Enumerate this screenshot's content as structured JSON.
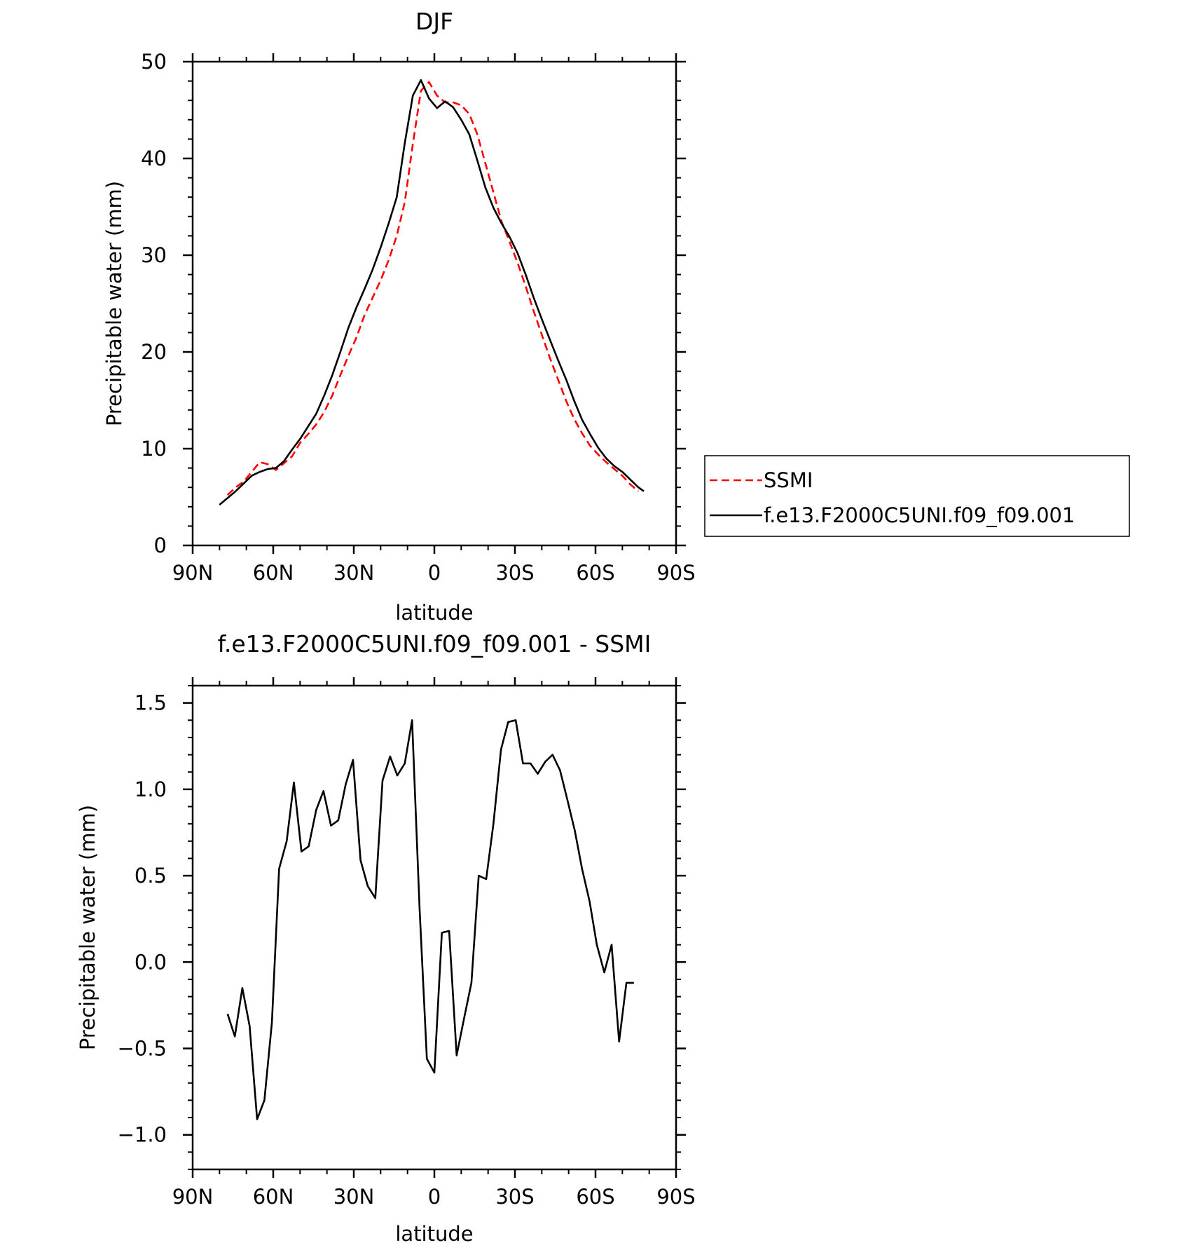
{
  "chart_data": [
    {
      "type": "line",
      "title": "DJF",
      "xlabel": "latitude",
      "ylabel": "Precipitable water (mm)",
      "x_reversed": true,
      "xlim": [
        90,
        -90
      ],
      "ylim": [
        0,
        50
      ],
      "xticks": [
        90,
        60,
        30,
        0,
        -30,
        -60,
        -90
      ],
      "xtick_labels": [
        "90N",
        "60N",
        "30N",
        "0",
        "30S",
        "60S",
        "90S"
      ],
      "yticks": [
        0,
        10,
        20,
        30,
        40,
        50
      ],
      "ytick_labels": [
        "0",
        "10",
        "20",
        "30",
        "40",
        "50"
      ],
      "legend": {
        "placement": "right",
        "entries": [
          {
            "label": "SSMI",
            "style": "dashed",
            "color": "#ff0000"
          },
          {
            "label": "f.e13.F2000C5UNI.f09_f09.001",
            "style": "solid",
            "color": "#000000"
          }
        ]
      },
      "series": [
        {
          "name": "SSMI",
          "color": "#ff0000",
          "style": "dashed",
          "x": [
            77,
            74,
            71,
            68,
            65,
            62,
            59,
            56,
            53,
            50,
            47,
            44,
            41,
            38,
            35,
            32,
            29,
            26,
            23,
            20,
            17,
            14,
            11,
            8,
            5,
            2,
            -1,
            -4,
            -7,
            -10,
            -13,
            -16,
            -19,
            -22,
            -25,
            -28,
            -31,
            -34,
            -37,
            -40,
            -43,
            -46,
            -49,
            -52,
            -55,
            -58,
            -61,
            -64,
            -67,
            -70,
            -73,
            -76
          ],
          "y": [
            5.2,
            6.0,
            6.6,
            7.6,
            8.6,
            8.4,
            7.8,
            8.5,
            9.2,
            10.6,
            11.5,
            12.5,
            13.8,
            15.5,
            17.6,
            19.6,
            21.5,
            23.8,
            25.6,
            27.4,
            29.5,
            32.0,
            35.5,
            41.5,
            47.0,
            47.9,
            46.5,
            45.8,
            45.8,
            45.5,
            44.6,
            42.5,
            39.5,
            36.5,
            33.5,
            31.4,
            29.2,
            26.8,
            24.2,
            21.8,
            19.4,
            17.2,
            15.0,
            13.1,
            11.6,
            10.3,
            9.4,
            8.6,
            7.9,
            7.2,
            6.3,
            5.6
          ]
        },
        {
          "name": "f.e13.F2000C5UNI.f09_f09.001",
          "color": "#000000",
          "style": "solid",
          "x": [
            80,
            77,
            74,
            71,
            68,
            65,
            62,
            59,
            56,
            53,
            50,
            47,
            44,
            41,
            38,
            35,
            32,
            29,
            26,
            23,
            20,
            17,
            14,
            11,
            8,
            5,
            2,
            -1,
            -4,
            -7,
            -10,
            -13,
            -16,
            -19,
            -22,
            -25,
            -28,
            -31,
            -34,
            -37,
            -40,
            -43,
            -46,
            -49,
            -52,
            -55,
            -58,
            -61,
            -64,
            -67,
            -70,
            -73,
            -76,
            -78
          ],
          "y": [
            4.2,
            4.9,
            5.6,
            6.4,
            7.2,
            7.6,
            7.9,
            8.0,
            8.7,
            9.9,
            11.0,
            12.3,
            13.6,
            15.5,
            17.6,
            20.0,
            22.5,
            24.6,
            26.5,
            28.5,
            30.8,
            33.3,
            36.0,
            41.6,
            46.5,
            48.1,
            46.2,
            45.2,
            45.9,
            45.3,
            44.0,
            42.5,
            39.8,
            37.0,
            34.9,
            33.3,
            31.9,
            30.2,
            28.0,
            25.6,
            23.4,
            21.3,
            19.2,
            17.2,
            15.0,
            13.0,
            11.5,
            10.1,
            9.0,
            8.2,
            7.6,
            6.8,
            6.0,
            5.6
          ]
        }
      ]
    },
    {
      "type": "line",
      "title": "f.e13.F2000C5UNI.f09_f09.001 - SSMI",
      "xlabel": "latitude",
      "ylabel": "Precipitable water (mm)",
      "x_reversed": true,
      "xlim": [
        90,
        -90
      ],
      "ylim": [
        -1.2,
        1.6
      ],
      "xticks": [
        90,
        60,
        30,
        0,
        -30,
        -60,
        -90
      ],
      "xtick_labels": [
        "90N",
        "60N",
        "30N",
        "0",
        "30S",
        "60S",
        "90S"
      ],
      "yticks": [
        -1.0,
        -0.5,
        0.0,
        0.5,
        1.0,
        1.5
      ],
      "ytick_labels": [
        "−1.0",
        "−0.5",
        "0.0",
        "0.5",
        "1.0",
        "1.5"
      ],
      "series": [
        {
          "color": "#000000",
          "style": "solid",
          "x": [
            77,
            74.3,
            71.5,
            68.8,
            66,
            63.3,
            60.5,
            57.8,
            55,
            52.3,
            49.5,
            46.8,
            44,
            41.3,
            38.5,
            35.8,
            33,
            30.3,
            27.5,
            24.8,
            22,
            19.3,
            16.5,
            13.8,
            11,
            8.3,
            5.5,
            2.8,
            0,
            -2.8,
            -5.5,
            -8.3,
            -11,
            -13.8,
            -16.5,
            -19.3,
            -22,
            -24.8,
            -27.5,
            -30.3,
            -33,
            -35.8,
            -38.5,
            -41.3,
            -44,
            -46.8,
            -49.5,
            -52.3,
            -55,
            -57.8,
            -60.5,
            -63.3,
            -66,
            -68.8,
            -71.5,
            -74.3
          ],
          "y": [
            -0.3,
            -0.43,
            -0.15,
            -0.37,
            -0.91,
            -0.8,
            -0.35,
            0.54,
            0.7,
            1.04,
            0.64,
            0.67,
            0.88,
            0.99,
            0.79,
            0.82,
            1.03,
            1.17,
            0.59,
            0.44,
            0.37,
            1.05,
            1.19,
            1.08,
            1.15,
            1.4,
            0.31,
            -0.56,
            -0.64,
            0.17,
            0.18,
            -0.54,
            -0.33,
            -0.12,
            0.5,
            0.48,
            0.8,
            1.23,
            1.39,
            1.4,
            1.15,
            1.15,
            1.09,
            1.16,
            1.2,
            1.11,
            0.94,
            0.76,
            0.54,
            0.35,
            0.1,
            -0.06,
            0.1,
            -0.46,
            -0.12,
            -0.12
          ]
        }
      ]
    }
  ]
}
